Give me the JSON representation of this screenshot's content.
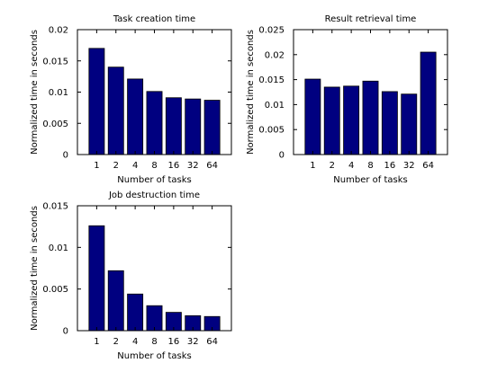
{
  "chart_data": [
    {
      "type": "bar",
      "title": "Task creation time",
      "xlabel": "Number of tasks",
      "ylabel": "Normalized time in seconds",
      "categories": [
        "1",
        "2",
        "4",
        "8",
        "16",
        "32",
        "64"
      ],
      "values": [
        0.017,
        0.014,
        0.0121,
        0.0101,
        0.0091,
        0.0089,
        0.0087
      ],
      "ylim": [
        0,
        0.02
      ],
      "yticks": [
        "0",
        "0.005",
        "0.01",
        "0.015",
        "0.02"
      ],
      "bar_color": "#000080"
    },
    {
      "type": "bar",
      "title": "Result retrieval time",
      "xlabel": "Number of tasks",
      "ylabel": "Normalized time in seconds",
      "categories": [
        "1",
        "2",
        "4",
        "8",
        "16",
        "32",
        "64"
      ],
      "values": [
        0.0151,
        0.0135,
        0.0137,
        0.0147,
        0.0126,
        0.0121,
        0.0205
      ],
      "ylim": [
        0,
        0.025
      ],
      "yticks": [
        "0",
        "0.005",
        "0.01",
        "0.015",
        "0.02",
        "0.025"
      ],
      "bar_color": "#000080"
    },
    {
      "type": "bar",
      "title": "Job destruction time",
      "xlabel": "Number of tasks",
      "ylabel": "Normalized time in seconds",
      "categories": [
        "1",
        "2",
        "4",
        "8",
        "16",
        "32",
        "64"
      ],
      "values": [
        0.0126,
        0.0072,
        0.0044,
        0.003,
        0.0022,
        0.0018,
        0.0017
      ],
      "ylim": [
        0,
        0.015
      ],
      "yticks": [
        "0",
        "0.005",
        "0.01",
        "0.015"
      ],
      "bar_color": "#000080"
    }
  ]
}
